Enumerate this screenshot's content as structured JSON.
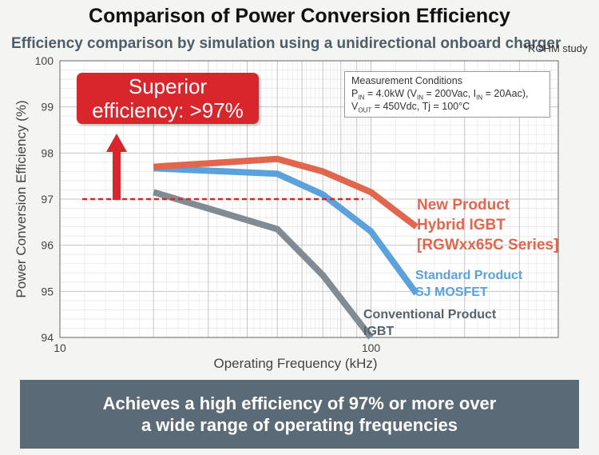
{
  "title": "Comparison of Power Conversion Efficiency",
  "subtitle": "Efficiency comparison by simulation using a unidirectional onboard charger",
  "study_note": "*ROHM study",
  "callout": {
    "line1": "Superior",
    "line2": "efficiency: >97%",
    "color": "#d9262d"
  },
  "conditions": {
    "heading": "Measurement Conditions",
    "p": "P",
    "p_sub": "IN",
    "p_text": " = 4.0kW (V",
    "v_sub": "IN",
    "v_text": " = 200Vac, I",
    "i_sub": "IN",
    "i_text": " = 20Aac),",
    "vout": "V",
    "vout_sub": "OUT",
    "vout_text": " = 450Vdc, Tj = 100°C"
  },
  "series_labels": {
    "new": [
      "New Product",
      "Hybrid IGBT",
      "[RGWxx65C Series]"
    ],
    "standard": [
      "Standard Product",
      "SJ MOSFET"
    ],
    "conventional": [
      "Conventional Product",
      "IGBT"
    ]
  },
  "footer": {
    "line1": "Achieves a high efficiency of 97% or more over",
    "line2": "a wide range of operating frequencies"
  },
  "chart_data": {
    "type": "line",
    "xscale": "log",
    "xlim": [
      10,
      400
    ],
    "ylim": [
      94,
      100
    ],
    "xlabel": "Operating Frequency (kHz)",
    "ylabel": "Power Conversion Efficiency (%)",
    "xticks": [
      10,
      100
    ],
    "yticks": [
      94,
      95,
      96,
      97,
      98,
      99,
      100
    ],
    "grid": true,
    "reference_line": 97,
    "series": [
      {
        "key": "new",
        "color": "#e0664e",
        "points": [
          [
            20,
            97.7
          ],
          [
            50,
            97.87
          ],
          [
            70,
            97.6
          ],
          [
            100,
            97.15
          ],
          [
            140,
            96.4
          ]
        ]
      },
      {
        "key": "standard",
        "color": "#5ba2dc",
        "points": [
          [
            20,
            97.67
          ],
          [
            50,
            97.55
          ],
          [
            70,
            97.1
          ],
          [
            100,
            96.3
          ],
          [
            140,
            94.95
          ]
        ]
      },
      {
        "key": "conventional",
        "color": "#808b93",
        "points": [
          [
            20,
            97.15
          ],
          [
            50,
            96.35
          ],
          [
            70,
            95.35
          ],
          [
            100,
            94
          ]
        ]
      }
    ]
  }
}
